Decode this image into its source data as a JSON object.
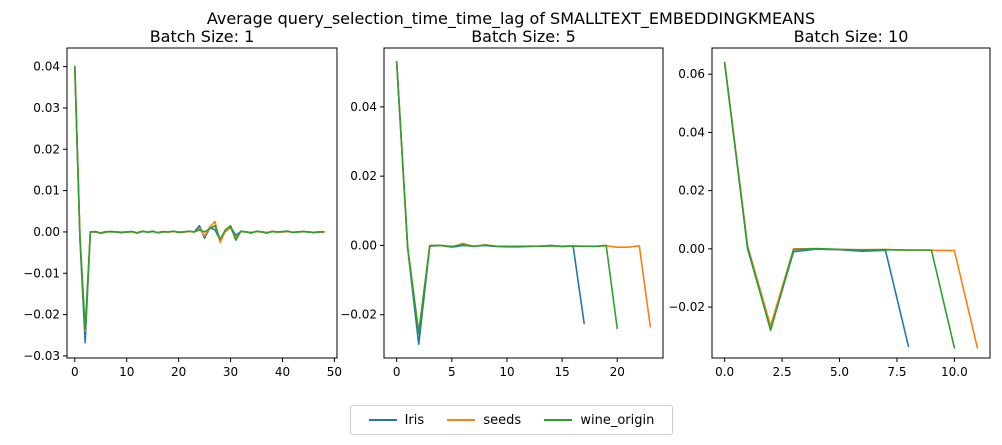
{
  "figure": {
    "suptitle": "Average query_selection_time_time_lag of SMALLTEXT_EMBEDDINGKMEANS"
  },
  "legend": {
    "placement": "bottom-center",
    "entries": [
      {
        "name": "Iris",
        "color": "#1f77b4"
      },
      {
        "name": "seeds",
        "color": "#ff7f0e"
      },
      {
        "name": "wine_origin",
        "color": "#2ca02c"
      }
    ]
  },
  "chart_data": [
    {
      "type": "line",
      "title": "Batch Size: 1",
      "xlim": [
        -1.5,
        50.5
      ],
      "ylim": [
        -0.0305,
        0.0445
      ],
      "xticks": [
        0,
        10,
        20,
        30,
        40,
        50
      ],
      "xtick_labels": [
        "0",
        "10",
        "20",
        "30",
        "40",
        "50"
      ],
      "yticks": [
        -0.03,
        -0.02,
        -0.01,
        0.0,
        0.01,
        0.02,
        0.03,
        0.04
      ],
      "ytick_labels": [
        "−0.03",
        "−0.02",
        "−0.01",
        "0.00",
        "0.01",
        "0.02",
        "0.03",
        "0.04"
      ],
      "series": [
        {
          "name": "Iris",
          "color": "#1f77b4",
          "x": [
            0,
            1,
            2,
            3,
            4,
            5,
            6,
            7,
            8,
            9,
            10,
            11,
            12,
            13,
            14,
            15,
            16,
            17,
            18,
            19,
            20,
            21,
            22,
            23,
            24,
            25,
            26,
            27,
            28,
            29,
            30,
            31,
            32,
            33,
            34,
            35,
            36,
            37,
            38,
            39,
            40,
            41,
            42,
            43,
            44,
            45,
            46,
            47,
            48
          ],
          "y": [
            0.04,
            -0.002,
            -0.0268,
            0.0,
            0.0,
            -0.0003,
            0.0,
            0.0001,
            0.0,
            -0.0002,
            0.0,
            0.0001,
            -0.0003,
            0.0001,
            0.0,
            0.0002,
            -0.0002,
            0.0,
            0.0,
            0.0001,
            -0.0001,
            0.0,
            0.0001,
            0.0,
            0.0015,
            -0.0015,
            0.001,
            0.0005,
            -0.002,
            0.0001,
            0.0012,
            -0.0008,
            0.0001,
            0.0,
            -0.0002,
            0.0001,
            0.0,
            -0.0002,
            0.0001,
            0.0,
            0.0,
            0.0001,
            -0.0001,
            0.0,
            0.0001,
            0.0,
            -0.0001,
            0.0,
            0.0
          ]
        },
        {
          "name": "seeds",
          "color": "#ff7f0e",
          "x": [
            0,
            1,
            2,
            3,
            4,
            5,
            6,
            7,
            8,
            9,
            10,
            11,
            12,
            13,
            14,
            15,
            16,
            17,
            18,
            19,
            20,
            21,
            22,
            23,
            24,
            25,
            26,
            27,
            28,
            29,
            30,
            31,
            32,
            33,
            34,
            35,
            36,
            37,
            38,
            39,
            40,
            41,
            42,
            43,
            44,
            45,
            46,
            47,
            48
          ],
          "y": [
            0.04,
            -0.001,
            -0.024,
            0.0,
            0.0,
            -0.0002,
            0.0001,
            0.0,
            0.0,
            -0.0001,
            0.0,
            0.0,
            -0.0002,
            0.0002,
            0.0,
            0.0001,
            -0.0001,
            0.0,
            0.0,
            0.0001,
            0.0,
            0.0,
            0.0001,
            0.0,
            0.0008,
            -0.001,
            0.0012,
            0.0025,
            -0.0025,
            0.0002,
            0.001,
            -0.0015,
            0.0001,
            0.0,
            -0.0001,
            0.0001,
            0.0,
            -0.0001,
            0.0001,
            0.0,
            0.0,
            0.0001,
            -0.0001,
            0.0,
            0.0001,
            0.0,
            -0.0001,
            0.0,
            0.0
          ]
        },
        {
          "name": "wine_origin",
          "color": "#2ca02c",
          "x": [
            0,
            1,
            2,
            3,
            4,
            5,
            6,
            7,
            8,
            9,
            10,
            11,
            12,
            13,
            14,
            15,
            16,
            17,
            18,
            19,
            20,
            21,
            22,
            23,
            24,
            25,
            26,
            27,
            28,
            29,
            30,
            31,
            32,
            33,
            34,
            35,
            36,
            37,
            38,
            39,
            40,
            41,
            42,
            43,
            44,
            45,
            46,
            47,
            48
          ],
          "y": [
            0.04,
            -0.0015,
            -0.0235,
            0.0,
            0.0001,
            -0.0003,
            0.0,
            0.0001,
            0.0,
            -0.0001,
            0.0,
            0.0001,
            -0.0002,
            0.0002,
            -0.0001,
            0.0001,
            -0.0002,
            0.0001,
            0.0,
            0.0002,
            -0.0001,
            0.0,
            0.0002,
            0.0,
            0.0005,
            0.0,
            0.0008,
            0.0015,
            -0.0018,
            0.0005,
            0.0015,
            -0.002,
            0.0002,
            0.0,
            -0.0003,
            0.0002,
            0.0,
            -0.0003,
            0.0001,
            0.0,
            0.0001,
            0.0002,
            -0.0001,
            0.0,
            0.0001,
            0.0,
            -0.0002,
            0.0,
            0.0
          ]
        }
      ]
    },
    {
      "type": "line",
      "title": "Batch Size: 5",
      "xlim": [
        -1.15,
        24.15
      ],
      "ylim": [
        -0.0325,
        0.057
      ],
      "xticks": [
        0,
        5,
        10,
        15,
        20
      ],
      "xtick_labels": [
        "0",
        "5",
        "10",
        "15",
        "20"
      ],
      "yticks": [
        -0.02,
        0.0,
        0.02,
        0.04
      ],
      "ytick_labels": [
        "−0.02",
        "0.00",
        "0.02",
        "0.04"
      ],
      "series": [
        {
          "name": "Iris",
          "color": "#1f77b4",
          "x": [
            0,
            1,
            2,
            3,
            4,
            5,
            6,
            7,
            8,
            9,
            10,
            11,
            12,
            13,
            14,
            15,
            16,
            17
          ],
          "y": [
            0.053,
            -0.001,
            -0.0285,
            -0.0002,
            0.0,
            -0.0005,
            0.0,
            -0.0002,
            0.0,
            -0.0003,
            -0.0004,
            -0.0004,
            -0.0003,
            -0.0002,
            0.0,
            -0.0003,
            -0.0002,
            -0.0225
          ]
        },
        {
          "name": "seeds",
          "color": "#ff7f0e",
          "x": [
            0,
            1,
            2,
            3,
            4,
            5,
            6,
            7,
            8,
            9,
            10,
            11,
            12,
            13,
            14,
            15,
            16,
            17,
            18,
            19,
            20,
            21,
            22,
            23
          ],
          "y": [
            0.053,
            -0.001,
            -0.025,
            0.0,
            0.0,
            -0.0005,
            0.0006,
            -0.0003,
            0.0002,
            -0.0002,
            -0.0003,
            -0.0002,
            -0.0003,
            -0.0002,
            -0.0001,
            -0.0002,
            -0.0001,
            -0.0003,
            -0.0002,
            -0.0001,
            -0.0005,
            -0.0005,
            -0.0001,
            -0.0235
          ]
        },
        {
          "name": "wine_origin",
          "color": "#2ca02c",
          "x": [
            0,
            1,
            2,
            3,
            4,
            5,
            6,
            7,
            8,
            9,
            10,
            11,
            12,
            13,
            14,
            15,
            16,
            17,
            18,
            19,
            20
          ],
          "y": [
            0.053,
            -0.0005,
            -0.0255,
            -0.0001,
            0.0,
            -0.0003,
            0.0002,
            -0.0003,
            0.0001,
            -0.0002,
            -0.0003,
            -0.0003,
            -0.0002,
            -0.0002,
            -0.0001,
            -0.0003,
            -0.0002,
            -0.0002,
            -0.0003,
            0.0,
            -0.024
          ]
        }
      ]
    },
    {
      "type": "line",
      "title": "Batch Size: 10",
      "xlim": [
        -0.55,
        11.55
      ],
      "ylim": [
        -0.0375,
        0.069
      ],
      "xticks": [
        0.0,
        2.5,
        5.0,
        7.5,
        10.0
      ],
      "xtick_labels": [
        "0.0",
        "2.5",
        "5.0",
        "7.5",
        "10.0"
      ],
      "yticks": [
        -0.02,
        0.0,
        0.02,
        0.04,
        0.06
      ],
      "ytick_labels": [
        "−0.02",
        "0.00",
        "0.02",
        "0.04",
        "0.06"
      ],
      "series": [
        {
          "name": "Iris",
          "color": "#1f77b4",
          "x": [
            0,
            1,
            2,
            3,
            4,
            5,
            6,
            7,
            8
          ],
          "y": [
            0.064,
            0.0,
            -0.0275,
            -0.001,
            -0.0001,
            -0.0003,
            -0.0008,
            -0.0005,
            -0.0335
          ]
        },
        {
          "name": "seeds",
          "color": "#ff7f0e",
          "x": [
            0,
            1,
            2,
            3,
            4,
            5,
            6,
            7,
            8,
            9,
            10,
            11
          ],
          "y": [
            0.064,
            0.001,
            -0.0265,
            0.0,
            0.0,
            -0.0002,
            -0.0003,
            -0.0002,
            -0.0005,
            -0.0005,
            -0.0006,
            -0.034
          ]
        },
        {
          "name": "wine_origin",
          "color": "#2ca02c",
          "x": [
            0,
            1,
            2,
            3,
            4,
            5,
            6,
            7,
            8,
            9,
            10
          ],
          "y": [
            0.064,
            0.0005,
            -0.028,
            -0.0003,
            0.0001,
            -0.0002,
            -0.0004,
            -0.0003,
            -0.0004,
            -0.0004,
            -0.034
          ]
        }
      ]
    }
  ]
}
